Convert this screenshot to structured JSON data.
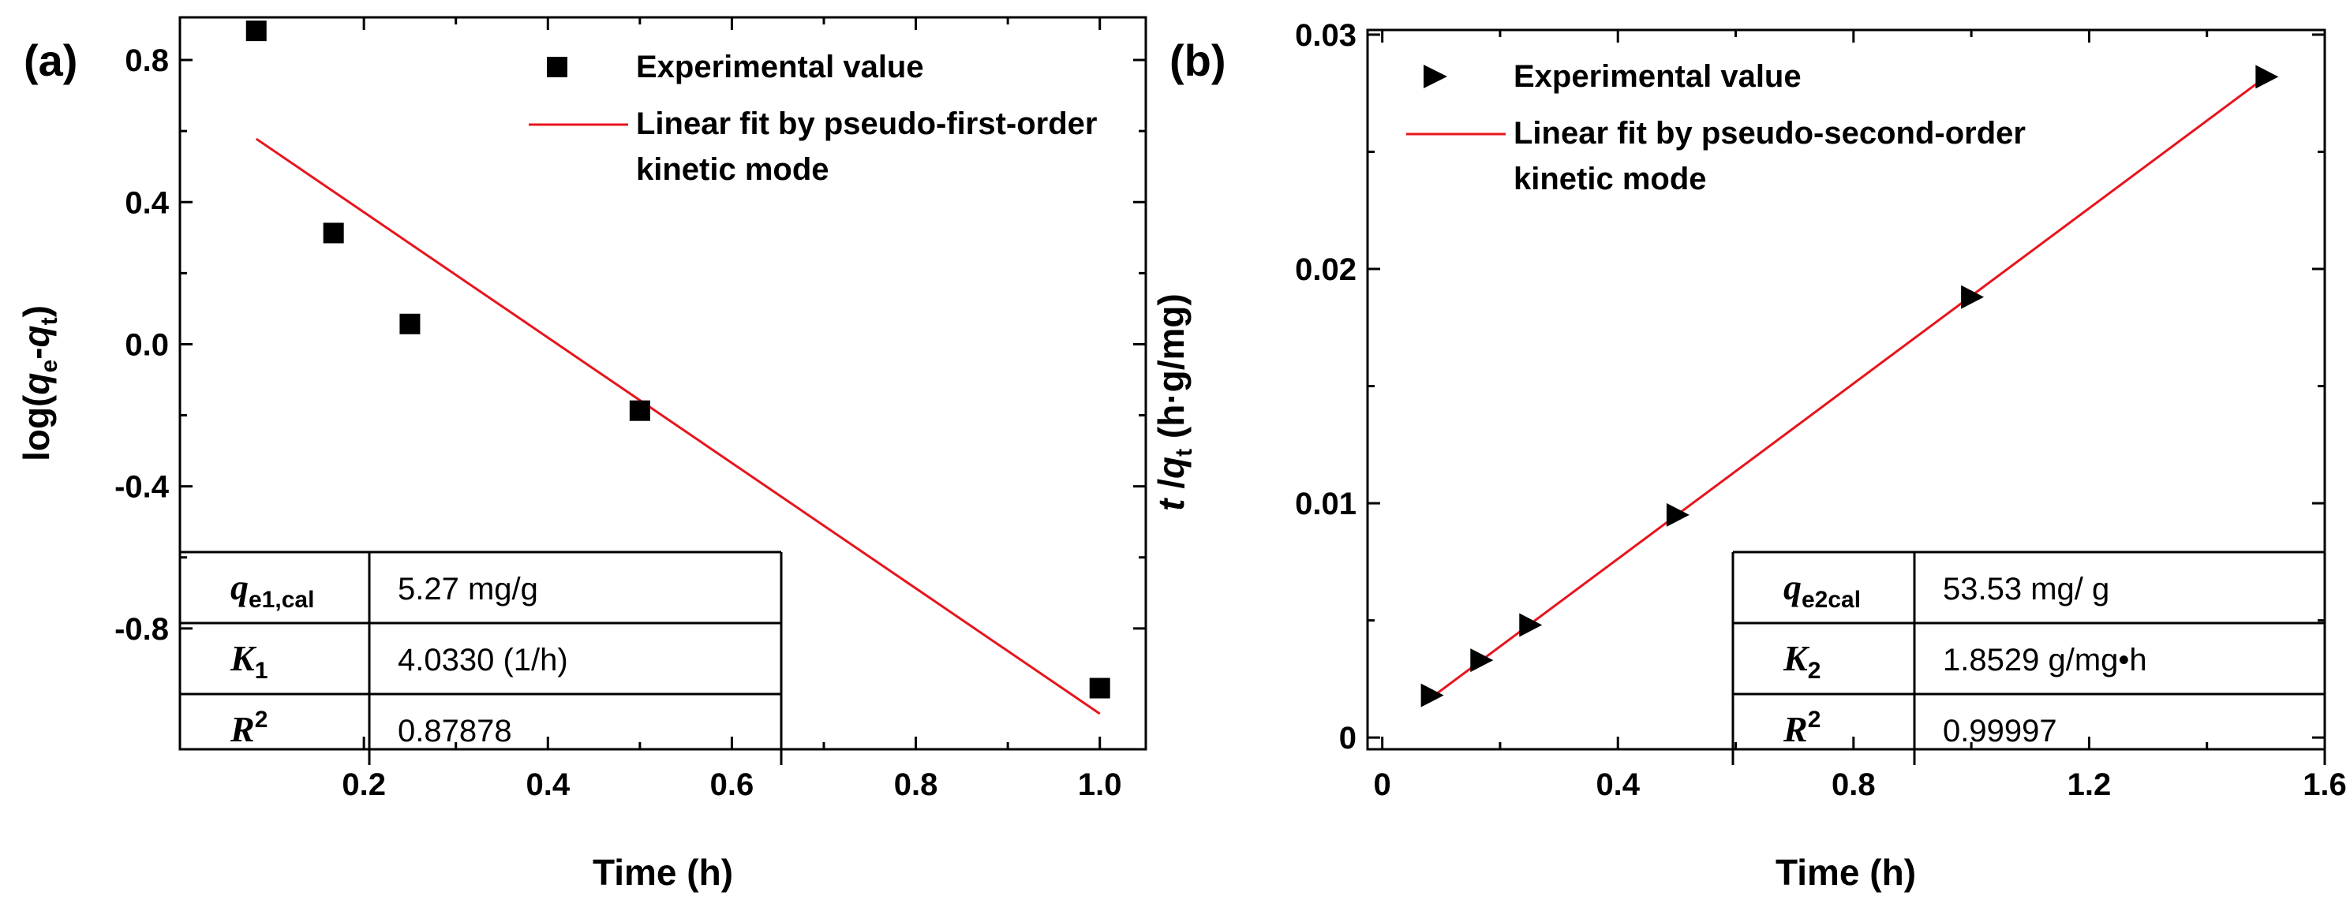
{
  "chart_data": [
    {
      "type": "scatter",
      "panel_label": "(a)",
      "xlabel": "Time (h)",
      "ylabel": "log(qe-qt)",
      "ylabel_parts": [
        "log(",
        "q",
        "e",
        "-",
        "q",
        "t",
        ")"
      ],
      "xlim": [
        0.0,
        1.05
      ],
      "ylim": [
        -1.14,
        0.92
      ],
      "xticks": [
        0.2,
        0.4,
        0.6,
        0.8,
        1.0
      ],
      "xtick_labels": [
        "0.2",
        "0.4",
        "0.6",
        "0.8",
        "1.0"
      ],
      "yticks": [
        -0.8,
        -0.4,
        0.0,
        0.4,
        0.8
      ],
      "ytick_labels": [
        "-0.8",
        "-0.4",
        "0.0",
        "0.4",
        "0.8"
      ],
      "series": [
        {
          "name": "Experimental value",
          "marker": "square",
          "x": [
            0.083,
            0.167,
            0.25,
            0.5,
            1.0
          ],
          "y": [
            0.882,
            0.313,
            0.057,
            -0.187,
            -0.968
          ]
        },
        {
          "name": "Linear fit by pseudo-first-order kinetic mode",
          "line": "#e8141c",
          "x": [
            0.083,
            1.0
          ],
          "y": [
            0.578,
            -1.04
          ]
        }
      ],
      "legend": [
        {
          "marker": "square",
          "lines": [
            "Experimental value"
          ]
        },
        {
          "marker": "line",
          "lines": [
            "Linear fit by pseudo-first-order",
            "kinetic mode"
          ]
        }
      ],
      "table": [
        {
          "symbol": "q",
          "sub": "e1,cal",
          "sup": "",
          "value": "5.27 mg/g"
        },
        {
          "symbol": "K",
          "sub": "1",
          "sup": "",
          "value": "4.0330   (1/h)"
        },
        {
          "symbol": "R",
          "sub": "",
          "sup": "2",
          "value": "0.87878"
        }
      ]
    },
    {
      "type": "scatter",
      "panel_label": "(b)",
      "xlabel": "Time (h)",
      "ylabel": "t /qt (h·g/mg)",
      "ylabel_parts": [
        "t",
        " /",
        "q",
        "t",
        " (h·g/mg)"
      ],
      "xlim": [
        -0.025,
        1.6
      ],
      "ylim": [
        -0.0005,
        0.0302
      ],
      "xticks": [
        0.0,
        0.4,
        0.8,
        1.2,
        1.6
      ],
      "xtick_labels": [
        "0",
        "0.4",
        "0.8",
        "1.2",
        "1.6"
      ],
      "yticks": [
        0.0,
        0.01,
        0.02,
        0.03
      ],
      "ytick_labels": [
        "0",
        "0.01",
        "0.02",
        "0.03"
      ],
      "series": [
        {
          "name": "Experimental value",
          "marker": "triangle-right",
          "x": [
            0.083,
            0.167,
            0.25,
            0.5,
            1.0,
            1.5
          ],
          "y": [
            0.0018,
            0.0033,
            0.0048,
            0.0095,
            0.0188,
            0.0282
          ]
        },
        {
          "name": "Linear fit by pseudo-second-order kinetic mode",
          "line": "#e8141c",
          "x": [
            0.083,
            1.5
          ],
          "y": [
            0.0017,
            0.0282
          ]
        }
      ],
      "legend": [
        {
          "marker": "triangle-right",
          "lines": [
            "Experimental value"
          ]
        },
        {
          "marker": "line",
          "lines": [
            "Linear fit by pseudo-second-order",
            "kinetic mode"
          ]
        }
      ],
      "table": [
        {
          "symbol": "q",
          "sub": "e2cal",
          "sup": "",
          "value": "53.53 mg/ g"
        },
        {
          "symbol": "K",
          "sub": "2",
          "sup": "",
          "value": "1.8529 g/mg•h"
        },
        {
          "symbol": "R",
          "sub": "",
          "sup": "2",
          "value": "0.99997"
        }
      ]
    }
  ]
}
